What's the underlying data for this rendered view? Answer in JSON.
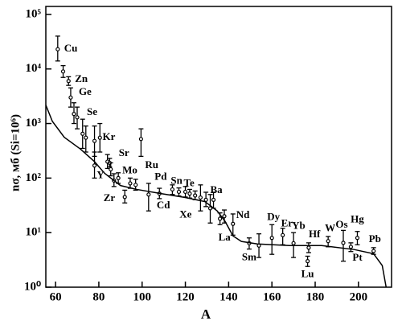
{
  "chart_data": {
    "type": "scatter",
    "xlabel": "A",
    "ylabel": "nσ, мб (Si=10⁶)",
    "xlim": [
      55.5,
      215.3
    ],
    "ylim": [
      1,
      140000
    ],
    "ylog": true,
    "xticks": [
      60,
      80,
      100,
      120,
      140,
      160,
      180,
      200
    ],
    "yticks": [
      {
        "value": 1,
        "label": "10⁰"
      },
      {
        "value": 10,
        "label": "10¹"
      },
      {
        "value": 100,
        "label": "10²"
      },
      {
        "value": 1000,
        "label": "10³"
      },
      {
        "value": 10000,
        "label": "10⁴"
      },
      {
        "value": 100000,
        "label": "10⁵"
      }
    ],
    "series": [
      {
        "type": "scatter",
        "color": "#000000",
        "x": [
          61,
          63.5,
          66,
          67,
          68.5,
          70,
          72.5,
          74,
          78,
          80.5,
          78,
          84,
          85,
          85.5,
          87,
          89,
          92,
          94.5,
          97,
          99.5,
          103,
          108,
          114,
          117,
          120,
          122,
          124.5,
          127,
          129.5,
          131.5,
          133,
          136,
          138,
          142,
          149.5,
          154,
          160,
          165,
          170,
          176.5,
          177,
          186,
          193,
          196.5,
          199.5,
          207
        ],
        "values": [
          23000,
          9000,
          6000,
          3000,
          1500,
          1300,
          650,
          550,
          480,
          550,
          170,
          200,
          190,
          145,
          90,
          100,
          45,
          80,
          75,
          520,
          50,
          52,
          62,
          56,
          56,
          52,
          48,
          44,
          40,
          28,
          40,
          18,
          20,
          14.5,
          6.4,
          5.8,
          8,
          9,
          6.4,
          3,
          5.3,
          7,
          6.5,
          5.5,
          8,
          4.6
        ],
        "lower": [
          14000,
          7000,
          5000,
          2000,
          1000,
          800,
          350,
          300,
          250,
          300,
          100,
          150,
          160,
          110,
          70,
          80,
          35,
          65,
          60,
          250,
          25,
          42,
          50,
          47,
          45,
          43,
          40,
          25,
          30,
          15,
          28,
          14,
          15,
          9,
          5,
          3.5,
          4,
          6,
          3.5,
          2.4,
          4.3,
          5.5,
          3,
          4.5,
          6,
          4
        ],
        "upper": [
          40000,
          11500,
          7200,
          4500,
          2400,
          2000,
          1200,
          900,
          900,
          1000,
          300,
          270,
          230,
          190,
          120,
          125,
          60,
          100,
          95,
          800,
          80,
          65,
          75,
          66,
          70,
          62,
          58,
          75,
          55,
          50,
          55,
          23,
          26,
          22,
          8,
          9.5,
          14,
          12,
          10,
          3.7,
          6.5,
          8.5,
          11,
          6.5,
          10.5,
          5.3
        ],
        "labels": [
          "Cu",
          null,
          "Zn",
          "Ge",
          null,
          "Se",
          null,
          null,
          "Kr",
          null,
          null,
          "Sr",
          null,
          "Y",
          null,
          "Mo",
          "Zr",
          null,
          null,
          "Ru",
          "Cd",
          "Pd",
          "Sn",
          null,
          "Te",
          null,
          null,
          "Xe",
          null,
          "Ba",
          null,
          "La",
          null,
          "Nd",
          "Sm",
          null,
          "Dy",
          "Er",
          "Yb",
          "Lu",
          "Hf",
          "W",
          "Os",
          "Pt",
          "Hg",
          "Pb"
        ]
      },
      {
        "type": "line",
        "color": "#000000",
        "x": [
          55.5,
          58.5,
          64,
          71.5,
          78,
          82.7,
          90,
          97.5,
          108.7,
          119.9,
          129.1,
          134.7,
          138.4,
          142,
          145.9,
          153.3,
          168,
          183,
          198,
          207,
          211,
          212.8
        ],
        "values": [
          2180,
          1100,
          560,
          340,
          200,
          122,
          73,
          62,
          52,
          44,
          37,
          25,
          16,
          8.7,
          6.9,
          6.2,
          5.8,
          5.8,
          4.9,
          4.1,
          2.5,
          1.0
        ]
      }
    ]
  }
}
